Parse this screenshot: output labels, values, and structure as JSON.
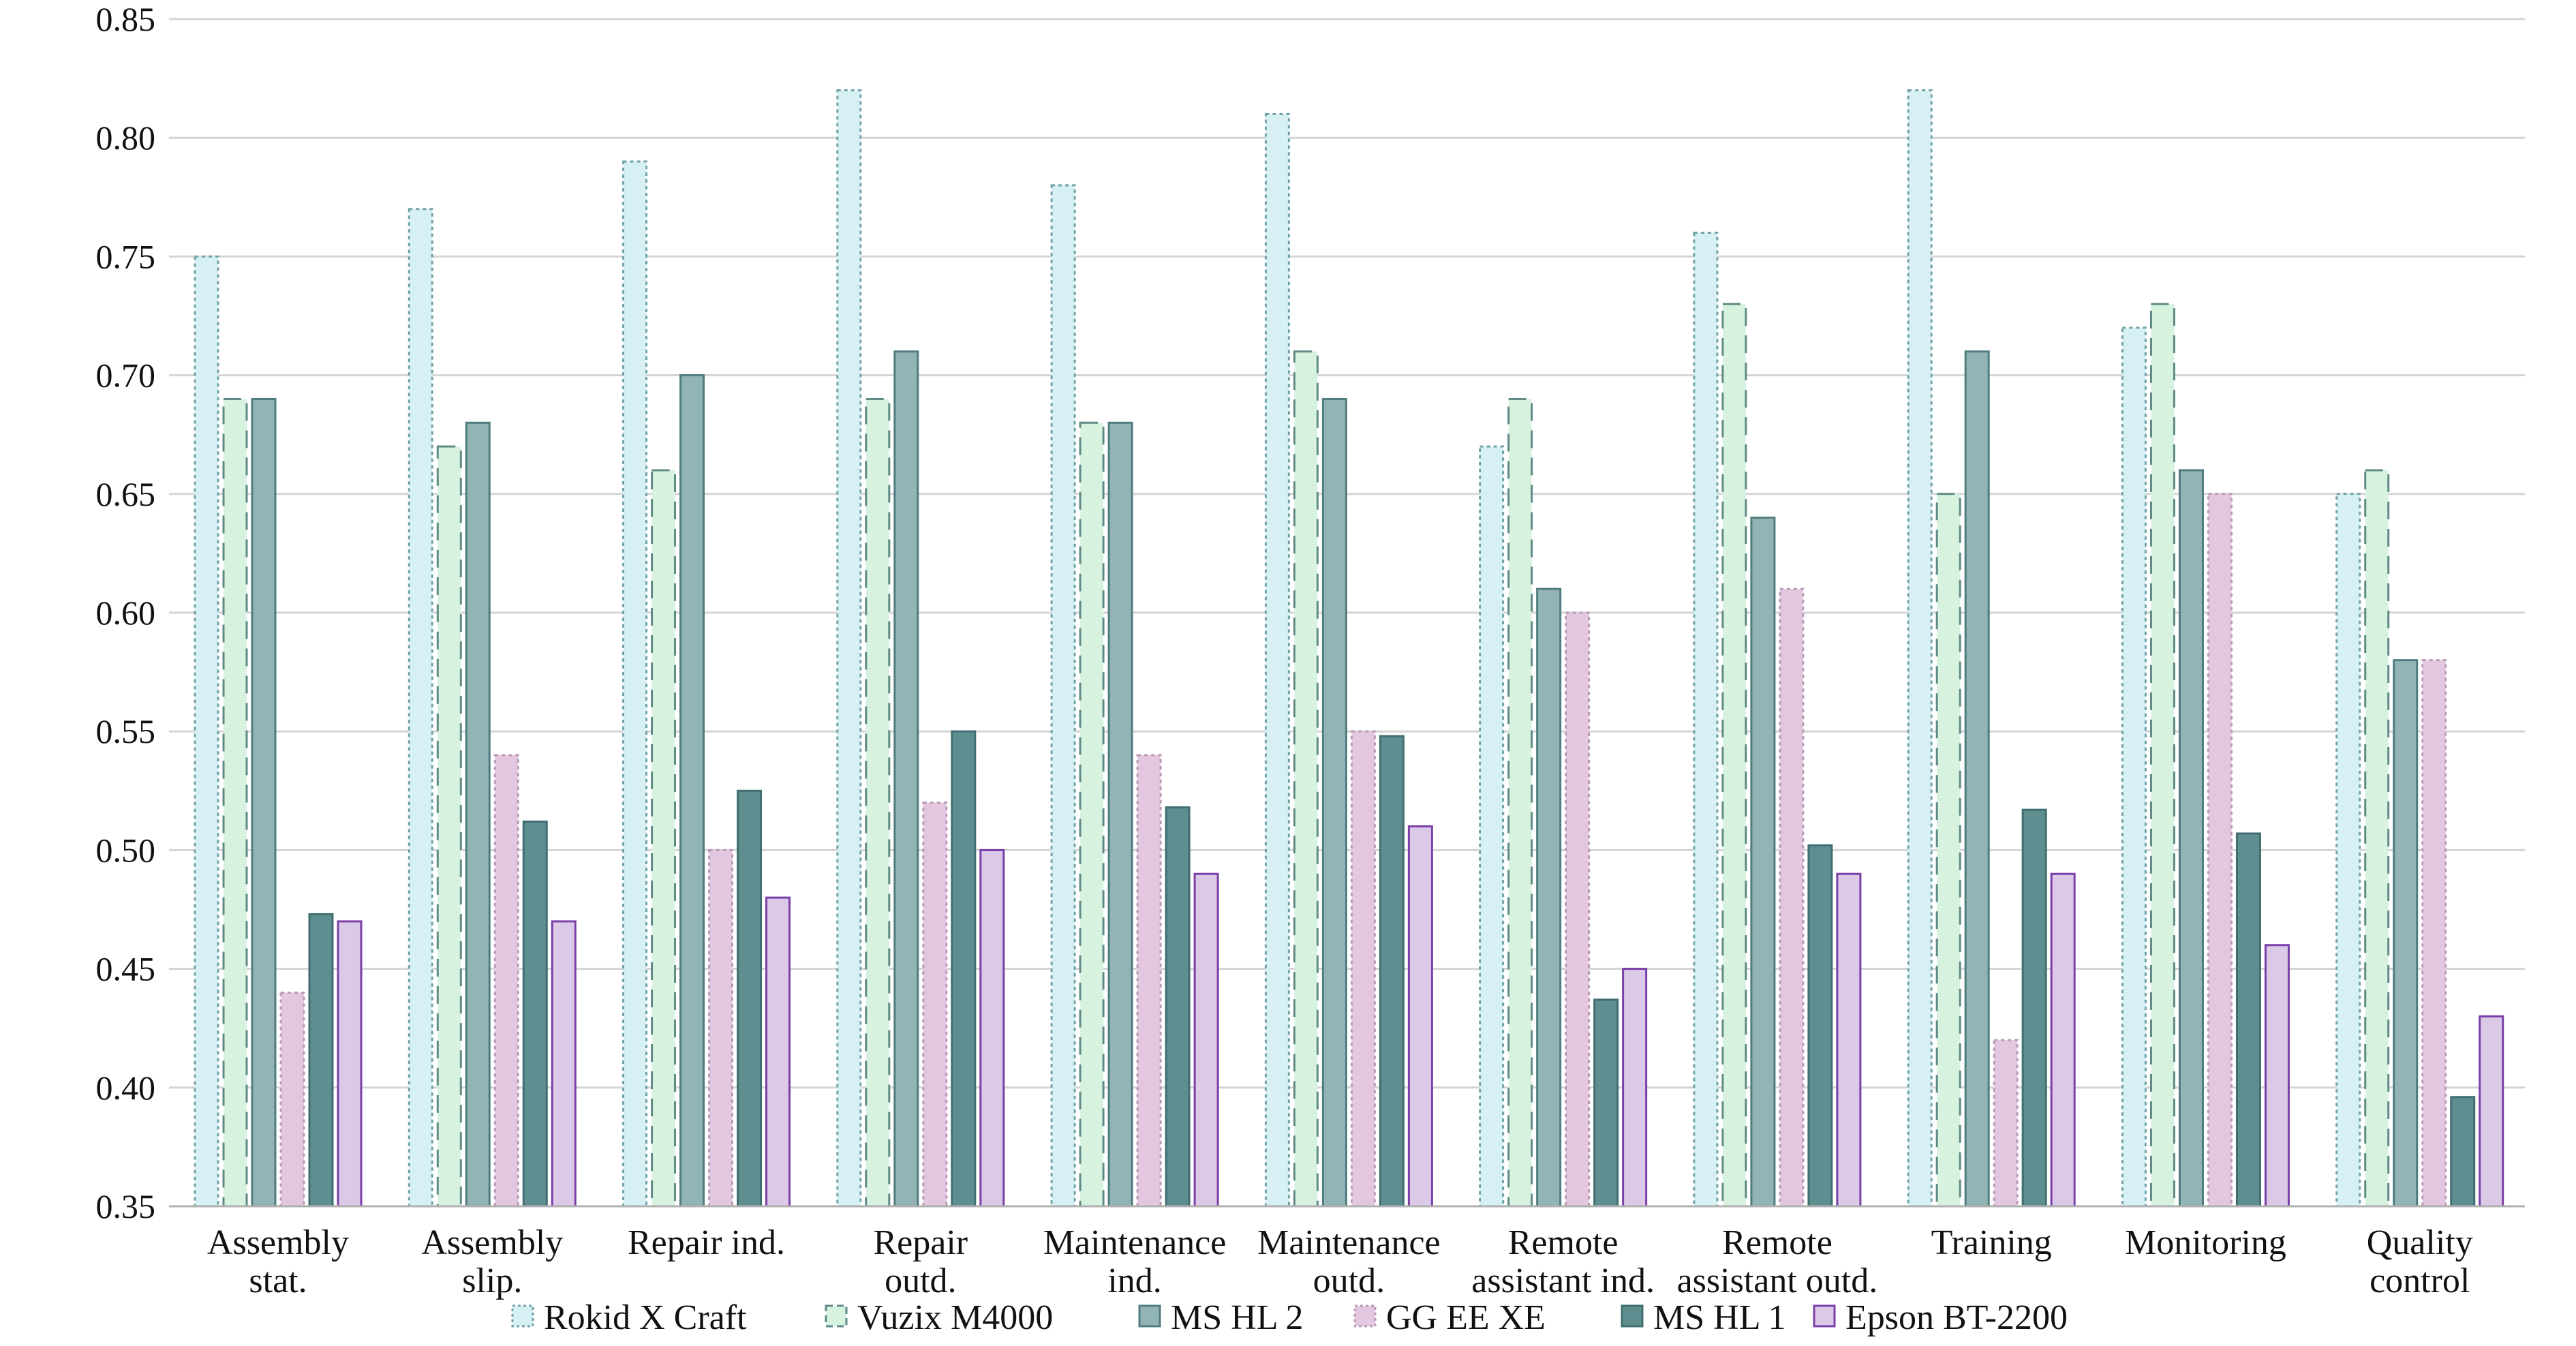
{
  "chart_data": {
    "type": "bar",
    "categories": [
      "Assembly\nstat.",
      "Assembly\nslip.",
      "Repair ind.",
      "Repair\noutd.",
      "Maintenance\nind.",
      "Maintenance\noutd.",
      "Remote\nassistant ind.",
      "Remote\nassistant outd.",
      "Training",
      "Monitoring",
      "Quality\ncontrol"
    ],
    "series": [
      {
        "name": "Rokid X Craft",
        "values": [
          0.75,
          0.77,
          0.79,
          0.82,
          0.78,
          0.81,
          0.67,
          0.76,
          0.82,
          0.72,
          0.65
        ],
        "fill": "#d6f0f3",
        "stroke": "#6fa2a8",
        "dash": "dotted"
      },
      {
        "name": "Vuzix M4000",
        "values": [
          0.69,
          0.67,
          0.66,
          0.69,
          0.68,
          0.71,
          0.69,
          0.73,
          0.65,
          0.73,
          0.66
        ],
        "fill": "#d8f2e0",
        "stroke": "#5f8a86",
        "dash": "dashed"
      },
      {
        "name": "MS HL 2",
        "values": [
          0.69,
          0.68,
          0.7,
          0.71,
          0.68,
          0.69,
          0.61,
          0.64,
          0.71,
          0.66,
          0.58
        ],
        "fill": "#93b4b4",
        "stroke": "#4f7c7e",
        "dash": "solid"
      },
      {
        "name": "GG EE XE",
        "values": [
          0.44,
          0.54,
          0.5,
          0.52,
          0.54,
          0.55,
          0.6,
          0.61,
          0.42,
          0.65,
          0.58
        ],
        "fill": "#e3c7e0",
        "stroke": "#b89ab5",
        "dash": "dotted"
      },
      {
        "name": "MS HL 1",
        "values": [
          0.473,
          0.512,
          0.525,
          0.55,
          0.518,
          0.548,
          0.437,
          0.502,
          0.517,
          0.507,
          0.396
        ],
        "fill": "#5e8e90",
        "stroke": "#416e70",
        "dash": "solid"
      },
      {
        "name": "Epson BT-2200",
        "values": [
          0.47,
          0.47,
          0.48,
          0.5,
          0.49,
          0.51,
          0.45,
          0.49,
          0.49,
          0.46,
          0.43
        ],
        "fill": "#dcc9e8",
        "stroke": "#7a3fa8",
        "dash": "solid"
      }
    ],
    "yticks": [
      "0.35",
      "0.40",
      "0.45",
      "0.50",
      "0.55",
      "0.60",
      "0.65",
      "0.70",
      "0.75",
      "0.80",
      "0.85"
    ],
    "ylim": [
      0.35,
      0.85
    ],
    "grid": true,
    "legend_position": "bottom",
    "gridline_color": "#d4d4d4",
    "axis_color": "#b0b0b0"
  }
}
